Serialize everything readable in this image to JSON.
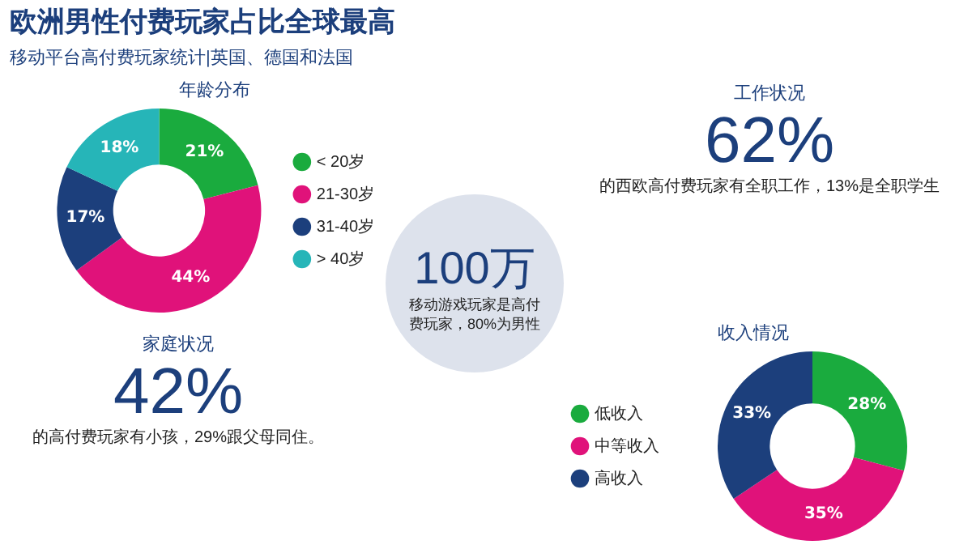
{
  "chart_data": [
    {
      "type": "other",
      "title": "欧洲男性付费玩家占比全球最高",
      "subtitle": "移动平台高付费玩家统计|英国、德国和法国"
    },
    {
      "type": "donut",
      "title": "年龄分布",
      "categories": [
        "< 20岁",
        "21-30岁",
        "31-40岁",
        "> 40岁"
      ],
      "values": [
        21,
        44,
        17,
        18
      ],
      "colors": [
        "#1aab3e",
        "#e0127a",
        "#1c3f7c",
        "#26b5b8"
      ],
      "value_labels": [
        "21%",
        "44%",
        "17%",
        "18%"
      ],
      "legend": "right"
    },
    {
      "type": "other",
      "title": "工作状况",
      "annotations": [
        "62%",
        "的西欧高付费玩家有全职工作，13%是全职学生"
      ]
    },
    {
      "type": "other",
      "annotations": [
        "100万",
        "移动游戏玩家是高付费玩家，80%为男性"
      ]
    },
    {
      "type": "other",
      "title": "家庭状况",
      "annotations": [
        "42%",
        "的高付费玩家有小孩，29%跟父母同住。"
      ]
    },
    {
      "type": "donut",
      "title": "收入情况",
      "categories": [
        "低收入",
        "中等收入",
        "高收入"
      ],
      "values": [
        28,
        35,
        33
      ],
      "colors": [
        "#1aab3e",
        "#e0127a",
        "#1c3f7c"
      ],
      "value_labels": [
        "28%",
        "35%",
        "33%"
      ],
      "legend": "left"
    }
  ]
}
